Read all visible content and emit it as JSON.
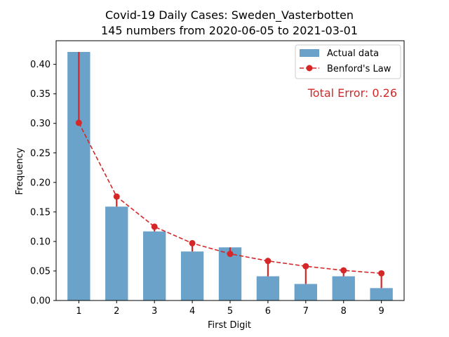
{
  "chart_data": {
    "type": "bar",
    "title": "Covid-19 Daily Cases: Sweden_Vasterbotten",
    "subtitle": "145 numbers from 2020-06-05 to 2021-03-01",
    "xlabel": "First Digit",
    "ylabel": "Frequency",
    "categories": [
      "1",
      "2",
      "3",
      "4",
      "5",
      "6",
      "7",
      "8",
      "9"
    ],
    "x": [
      1,
      2,
      3,
      4,
      5,
      6,
      7,
      8,
      9
    ],
    "ylim": [
      0,
      0.44
    ],
    "yticks": [
      0.0,
      0.05,
      0.1,
      0.15,
      0.2,
      0.25,
      0.3,
      0.35,
      0.4
    ],
    "ytick_labels": [
      "0.00",
      "0.05",
      "0.10",
      "0.15",
      "0.20",
      "0.25",
      "0.30",
      "0.35",
      "0.40"
    ],
    "grid": false,
    "legend_position": "top-right",
    "series": [
      {
        "name": "Actual data",
        "kind": "bar",
        "color": "#6aa2c9",
        "values": [
          0.421,
          0.159,
          0.117,
          0.083,
          0.09,
          0.041,
          0.028,
          0.041,
          0.021
        ]
      },
      {
        "name": "Benford's Law",
        "kind": "line-dashed-markers",
        "color": "#d62728",
        "values": [
          0.301,
          0.176,
          0.125,
          0.097,
          0.079,
          0.067,
          0.058,
          0.051,
          0.046
        ]
      }
    ],
    "annotation": {
      "text": "Total Error: 0.26",
      "color": "#d62728"
    }
  }
}
